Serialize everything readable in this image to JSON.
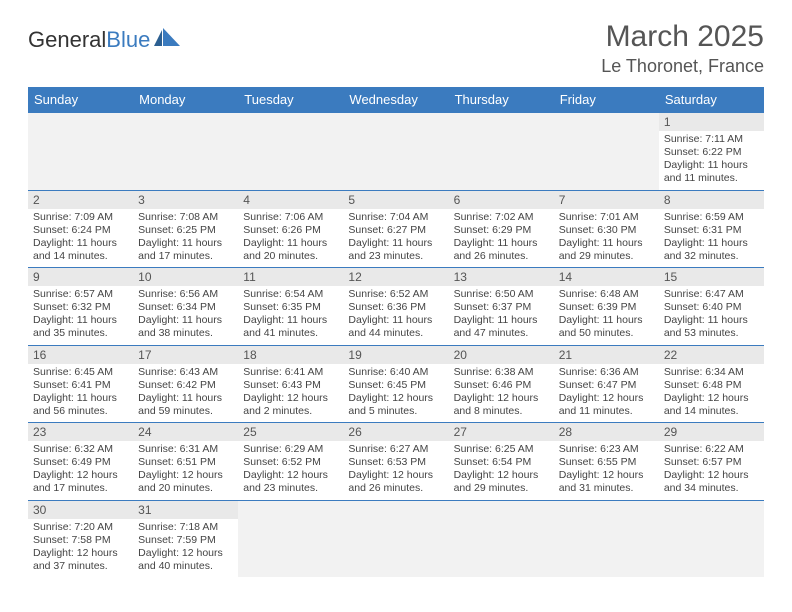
{
  "brand": {
    "part1": "General",
    "part2": "Blue"
  },
  "title": "March 2025",
  "location": "Le Thoronet, France",
  "colors": {
    "header_bg": "#3b7bbf",
    "header_fg": "#ffffff",
    "border": "#3b7bbf",
    "daynum_bg": "#e9e9e9",
    "text": "#444444",
    "empty_bg": "#f2f2f2"
  },
  "weekdays": [
    "Sunday",
    "Monday",
    "Tuesday",
    "Wednesday",
    "Thursday",
    "Friday",
    "Saturday"
  ],
  "weeks": [
    [
      null,
      null,
      null,
      null,
      null,
      null,
      {
        "n": "1",
        "sr": "Sunrise: 7:11 AM",
        "ss": "Sunset: 6:22 PM",
        "dl": "Daylight: 11 hours and 11 minutes."
      }
    ],
    [
      {
        "n": "2",
        "sr": "Sunrise: 7:09 AM",
        "ss": "Sunset: 6:24 PM",
        "dl": "Daylight: 11 hours and 14 minutes."
      },
      {
        "n": "3",
        "sr": "Sunrise: 7:08 AM",
        "ss": "Sunset: 6:25 PM",
        "dl": "Daylight: 11 hours and 17 minutes."
      },
      {
        "n": "4",
        "sr": "Sunrise: 7:06 AM",
        "ss": "Sunset: 6:26 PM",
        "dl": "Daylight: 11 hours and 20 minutes."
      },
      {
        "n": "5",
        "sr": "Sunrise: 7:04 AM",
        "ss": "Sunset: 6:27 PM",
        "dl": "Daylight: 11 hours and 23 minutes."
      },
      {
        "n": "6",
        "sr": "Sunrise: 7:02 AM",
        "ss": "Sunset: 6:29 PM",
        "dl": "Daylight: 11 hours and 26 minutes."
      },
      {
        "n": "7",
        "sr": "Sunrise: 7:01 AM",
        "ss": "Sunset: 6:30 PM",
        "dl": "Daylight: 11 hours and 29 minutes."
      },
      {
        "n": "8",
        "sr": "Sunrise: 6:59 AM",
        "ss": "Sunset: 6:31 PM",
        "dl": "Daylight: 11 hours and 32 minutes."
      }
    ],
    [
      {
        "n": "9",
        "sr": "Sunrise: 6:57 AM",
        "ss": "Sunset: 6:32 PM",
        "dl": "Daylight: 11 hours and 35 minutes."
      },
      {
        "n": "10",
        "sr": "Sunrise: 6:56 AM",
        "ss": "Sunset: 6:34 PM",
        "dl": "Daylight: 11 hours and 38 minutes."
      },
      {
        "n": "11",
        "sr": "Sunrise: 6:54 AM",
        "ss": "Sunset: 6:35 PM",
        "dl": "Daylight: 11 hours and 41 minutes."
      },
      {
        "n": "12",
        "sr": "Sunrise: 6:52 AM",
        "ss": "Sunset: 6:36 PM",
        "dl": "Daylight: 11 hours and 44 minutes."
      },
      {
        "n": "13",
        "sr": "Sunrise: 6:50 AM",
        "ss": "Sunset: 6:37 PM",
        "dl": "Daylight: 11 hours and 47 minutes."
      },
      {
        "n": "14",
        "sr": "Sunrise: 6:48 AM",
        "ss": "Sunset: 6:39 PM",
        "dl": "Daylight: 11 hours and 50 minutes."
      },
      {
        "n": "15",
        "sr": "Sunrise: 6:47 AM",
        "ss": "Sunset: 6:40 PM",
        "dl": "Daylight: 11 hours and 53 minutes."
      }
    ],
    [
      {
        "n": "16",
        "sr": "Sunrise: 6:45 AM",
        "ss": "Sunset: 6:41 PM",
        "dl": "Daylight: 11 hours and 56 minutes."
      },
      {
        "n": "17",
        "sr": "Sunrise: 6:43 AM",
        "ss": "Sunset: 6:42 PM",
        "dl": "Daylight: 11 hours and 59 minutes."
      },
      {
        "n": "18",
        "sr": "Sunrise: 6:41 AM",
        "ss": "Sunset: 6:43 PM",
        "dl": "Daylight: 12 hours and 2 minutes."
      },
      {
        "n": "19",
        "sr": "Sunrise: 6:40 AM",
        "ss": "Sunset: 6:45 PM",
        "dl": "Daylight: 12 hours and 5 minutes."
      },
      {
        "n": "20",
        "sr": "Sunrise: 6:38 AM",
        "ss": "Sunset: 6:46 PM",
        "dl": "Daylight: 12 hours and 8 minutes."
      },
      {
        "n": "21",
        "sr": "Sunrise: 6:36 AM",
        "ss": "Sunset: 6:47 PM",
        "dl": "Daylight: 12 hours and 11 minutes."
      },
      {
        "n": "22",
        "sr": "Sunrise: 6:34 AM",
        "ss": "Sunset: 6:48 PM",
        "dl": "Daylight: 12 hours and 14 minutes."
      }
    ],
    [
      {
        "n": "23",
        "sr": "Sunrise: 6:32 AM",
        "ss": "Sunset: 6:49 PM",
        "dl": "Daylight: 12 hours and 17 minutes."
      },
      {
        "n": "24",
        "sr": "Sunrise: 6:31 AM",
        "ss": "Sunset: 6:51 PM",
        "dl": "Daylight: 12 hours and 20 minutes."
      },
      {
        "n": "25",
        "sr": "Sunrise: 6:29 AM",
        "ss": "Sunset: 6:52 PM",
        "dl": "Daylight: 12 hours and 23 minutes."
      },
      {
        "n": "26",
        "sr": "Sunrise: 6:27 AM",
        "ss": "Sunset: 6:53 PM",
        "dl": "Daylight: 12 hours and 26 minutes."
      },
      {
        "n": "27",
        "sr": "Sunrise: 6:25 AM",
        "ss": "Sunset: 6:54 PM",
        "dl": "Daylight: 12 hours and 29 minutes."
      },
      {
        "n": "28",
        "sr": "Sunrise: 6:23 AM",
        "ss": "Sunset: 6:55 PM",
        "dl": "Daylight: 12 hours and 31 minutes."
      },
      {
        "n": "29",
        "sr": "Sunrise: 6:22 AM",
        "ss": "Sunset: 6:57 PM",
        "dl": "Daylight: 12 hours and 34 minutes."
      }
    ],
    [
      {
        "n": "30",
        "sr": "Sunrise: 7:20 AM",
        "ss": "Sunset: 7:58 PM",
        "dl": "Daylight: 12 hours and 37 minutes."
      },
      {
        "n": "31",
        "sr": "Sunrise: 7:18 AM",
        "ss": "Sunset: 7:59 PM",
        "dl": "Daylight: 12 hours and 40 minutes."
      },
      null,
      null,
      null,
      null,
      null
    ]
  ]
}
